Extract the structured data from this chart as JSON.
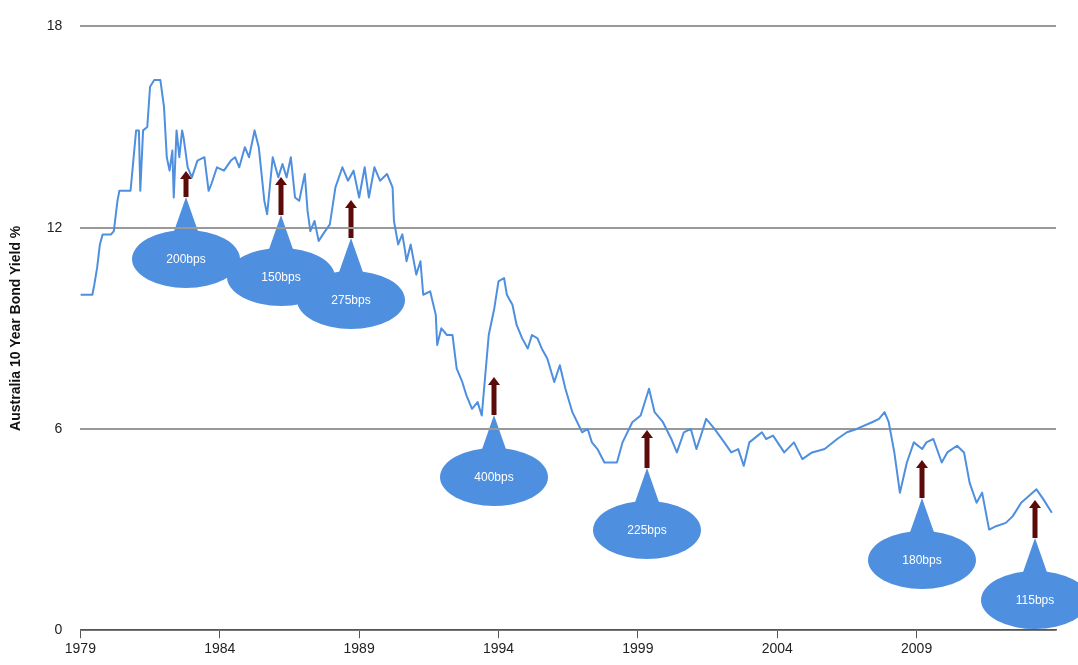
{
  "chart_data": {
    "type": "line",
    "ylabel": "Australia 10 Year Bond Yield %",
    "xlim": [
      1979,
      2014
    ],
    "xticks": [
      1979,
      1984,
      1989,
      1994,
      1999,
      2004,
      2009
    ],
    "ylim": [
      0,
      18
    ],
    "yticks": [
      0,
      6,
      12,
      18
    ],
    "grid": "y",
    "legend": false,
    "marker": "none",
    "line_style": "solid",
    "series": [
      {
        "color": "#4f8fdf",
        "x": [
          1979.0,
          1979.43,
          1979.5,
          1979.6,
          1979.7,
          1979.8,
          1980.1,
          1980.2,
          1980.33,
          1980.4,
          1980.8,
          1981.0,
          1981.1,
          1981.15,
          1981.25,
          1981.4,
          1981.5,
          1981.65,
          1981.87,
          1982.0,
          1982.1,
          1982.2,
          1982.3,
          1982.35,
          1982.45,
          1982.55,
          1982.65,
          1982.7,
          1982.85,
          1983.0,
          1983.2,
          1983.45,
          1983.6,
          1983.7,
          1983.9,
          1984.15,
          1984.4,
          1984.55,
          1984.7,
          1984.9,
          1985.05,
          1985.25,
          1985.4,
          1985.6,
          1985.7,
          1985.9,
          1986.1,
          1986.25,
          1986.4,
          1986.55,
          1986.7,
          1986.85,
          1987.05,
          1987.15,
          1987.25,
          1987.4,
          1987.55,
          1987.7,
          1987.95,
          1988.15,
          1988.4,
          1988.6,
          1988.8,
          1989.0,
          1989.2,
          1989.35,
          1989.55,
          1989.75,
          1990.0,
          1990.2,
          1990.25,
          1990.4,
          1990.55,
          1990.65,
          1990.7,
          1990.85,
          1991.05,
          1991.2,
          1991.3,
          1991.55,
          1991.75,
          1991.8,
          1991.95,
          1992.15,
          1992.35,
          1992.5,
          1992.7,
          1992.85,
          1993.05,
          1993.25,
          1993.4,
          1993.65,
          1993.85,
          1994.0,
          1994.2,
          1994.3,
          1994.5,
          1994.65,
          1994.85,
          1995.05,
          1995.2,
          1995.4,
          1995.55,
          1995.75,
          1996.0,
          1996.2,
          1996.4,
          1996.65,
          1997.0,
          1997.2,
          1997.35,
          1997.55,
          1997.8,
          1998.25,
          1998.45,
          1998.8,
          1999.1,
          1999.4,
          1999.6,
          1999.9,
          2000.2,
          2000.4,
          2000.65,
          2000.9,
          2001.1,
          2001.3,
          2001.45,
          2001.75,
          2002.1,
          2002.35,
          2002.6,
          2002.8,
          2003.0,
          2003.3,
          2003.45,
          2003.6,
          2003.85,
          2004.25,
          2004.6,
          2004.9,
          2005.25,
          2005.7,
          2006.15,
          2006.5,
          2006.85,
          2007.4,
          2007.65,
          2007.85,
          2008.0,
          2008.2,
          2008.4,
          2008.65,
          2008.9,
          2009.2,
          2009.35,
          2009.6,
          2009.9,
          2010.1,
          2010.45,
          2010.7,
          2010.9,
          2011.15,
          2011.35,
          2011.6,
          2011.85,
          2012.2,
          2012.45,
          2012.75,
          2013.3,
          2013.55,
          2013.85
        ],
        "values": [
          10.0,
          10.0,
          10.3,
          10.8,
          11.5,
          11.8,
          11.8,
          11.9,
          12.8,
          13.1,
          13.1,
          14.9,
          14.9,
          13.1,
          14.9,
          15.0,
          16.2,
          16.4,
          16.4,
          15.6,
          14.1,
          13.7,
          14.3,
          12.9,
          14.9,
          14.1,
          14.9,
          14.7,
          13.8,
          13.5,
          14.0,
          14.1,
          13.1,
          13.3,
          13.8,
          13.7,
          14.0,
          14.1,
          13.8,
          14.4,
          14.1,
          14.9,
          14.4,
          12.8,
          12.4,
          14.1,
          13.5,
          13.9,
          13.5,
          14.1,
          12.9,
          12.8,
          13.6,
          12.5,
          11.9,
          12.2,
          11.6,
          11.8,
          12.1,
          13.2,
          13.8,
          13.4,
          13.7,
          12.9,
          13.8,
          12.9,
          13.8,
          13.4,
          13.6,
          13.2,
          12.2,
          11.5,
          11.8,
          11.3,
          11.0,
          11.5,
          10.6,
          11.0,
          10.0,
          10.1,
          9.4,
          8.5,
          9.0,
          8.8,
          8.8,
          7.8,
          7.4,
          7.0,
          6.6,
          6.8,
          6.4,
          8.8,
          9.6,
          10.4,
          10.5,
          10.0,
          9.7,
          9.1,
          8.7,
          8.4,
          8.8,
          8.7,
          8.4,
          8.1,
          7.4,
          7.9,
          7.2,
          6.5,
          5.9,
          6.0,
          5.6,
          5.4,
          5.0,
          5.0,
          5.6,
          6.2,
          6.4,
          7.2,
          6.5,
          6.2,
          5.7,
          5.3,
          5.9,
          6.0,
          5.4,
          5.9,
          6.3,
          6.0,
          5.6,
          5.3,
          5.4,
          4.9,
          5.6,
          5.8,
          5.9,
          5.7,
          5.8,
          5.3,
          5.6,
          5.1,
          5.3,
          5.4,
          5.7,
          5.9,
          6.0,
          6.2,
          6.3,
          6.5,
          6.2,
          5.3,
          4.1,
          5.0,
          5.6,
          5.4,
          5.6,
          5.7,
          5.0,
          5.3,
          5.5,
          5.3,
          4.4,
          3.8,
          4.1,
          3.0,
          3.1,
          3.2,
          3.4,
          3.8,
          4.2,
          3.9,
          3.5
        ]
      }
    ],
    "annotations": [
      "200bps",
      "150bps",
      "275bps",
      "400bps",
      "225bps",
      "180bps",
      "115bps"
    ]
  }
}
